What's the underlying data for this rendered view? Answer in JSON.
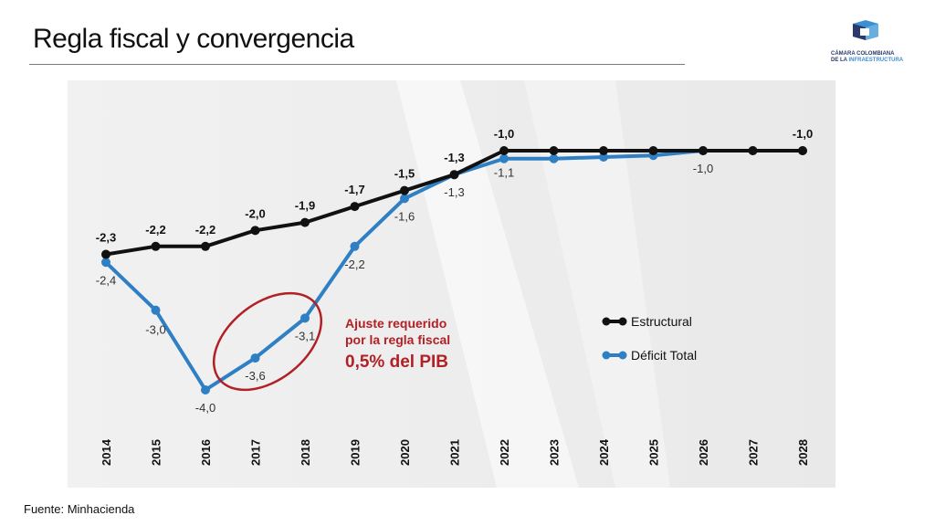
{
  "slide": {
    "title": "Regla fiscal y convergencia",
    "footer": "Fuente: Minhacienda",
    "logo": {
      "line1": "CÁMARA COLOMBIANA",
      "line2_prefix": "DE LA ",
      "line2_accent": "INFRAESTRUCTURA"
    }
  },
  "chart_data": {
    "type": "line",
    "categories": [
      "2014",
      "2015",
      "2016",
      "2017",
      "2018",
      "2019",
      "2020",
      "2021",
      "2022",
      "2023",
      "2024",
      "2025",
      "2026",
      "2027",
      "2028"
    ],
    "series": [
      {
        "name": "Estructural",
        "color": "#111111",
        "values": [
          -2.3,
          -2.2,
          -2.2,
          -2.0,
          -1.9,
          -1.7,
          -1.5,
          -1.3,
          -1.0,
          -1.0,
          -1.0,
          -1.0,
          -1.0,
          -1.0,
          -1.0
        ],
        "labels": [
          "-2,3",
          "-2,2",
          "-2,2",
          "-2,0",
          "-1,9",
          "-1,7",
          "-1,5",
          "-1,3",
          "-1,0",
          "",
          "",
          "",
          "",
          "",
          "-1,0"
        ]
      },
      {
        "name": "Déficit Total",
        "color": "#2f7fc4",
        "values": [
          -2.4,
          -3.0,
          -4.0,
          -3.6,
          -3.1,
          -2.2,
          -1.6,
          -1.3,
          -1.1,
          -1.1,
          -1.08,
          -1.06,
          -1.0,
          -1.0,
          -1.0
        ],
        "labels": [
          "-2,4",
          "-3,0",
          "-4,0",
          "-3,6",
          "-3,1",
          "-2,2",
          "-1,6",
          "-1,3",
          "-1,1",
          "",
          "",
          "",
          "-1,0",
          "",
          ""
        ]
      }
    ],
    "annotation": {
      "line1": "Ajuste requerido",
      "line2": "por la regla fiscal",
      "line3": "0,5% del PIB",
      "color": "#b22025"
    },
    "legend_position": "right",
    "grid": false,
    "ylim": [
      -4.4,
      -0.5
    ]
  }
}
